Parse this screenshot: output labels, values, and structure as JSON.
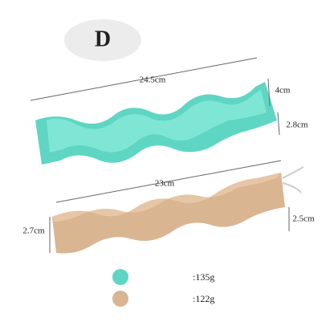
{
  "badge": "D",
  "mold": {
    "length": "24.5cm",
    "width": "4cm",
    "height": "2.8cm",
    "weight": ":135g"
  },
  "candle": {
    "length": "23cm",
    "height": "2.7cm",
    "depth": "2.5cm",
    "weight": ":122g"
  }
}
